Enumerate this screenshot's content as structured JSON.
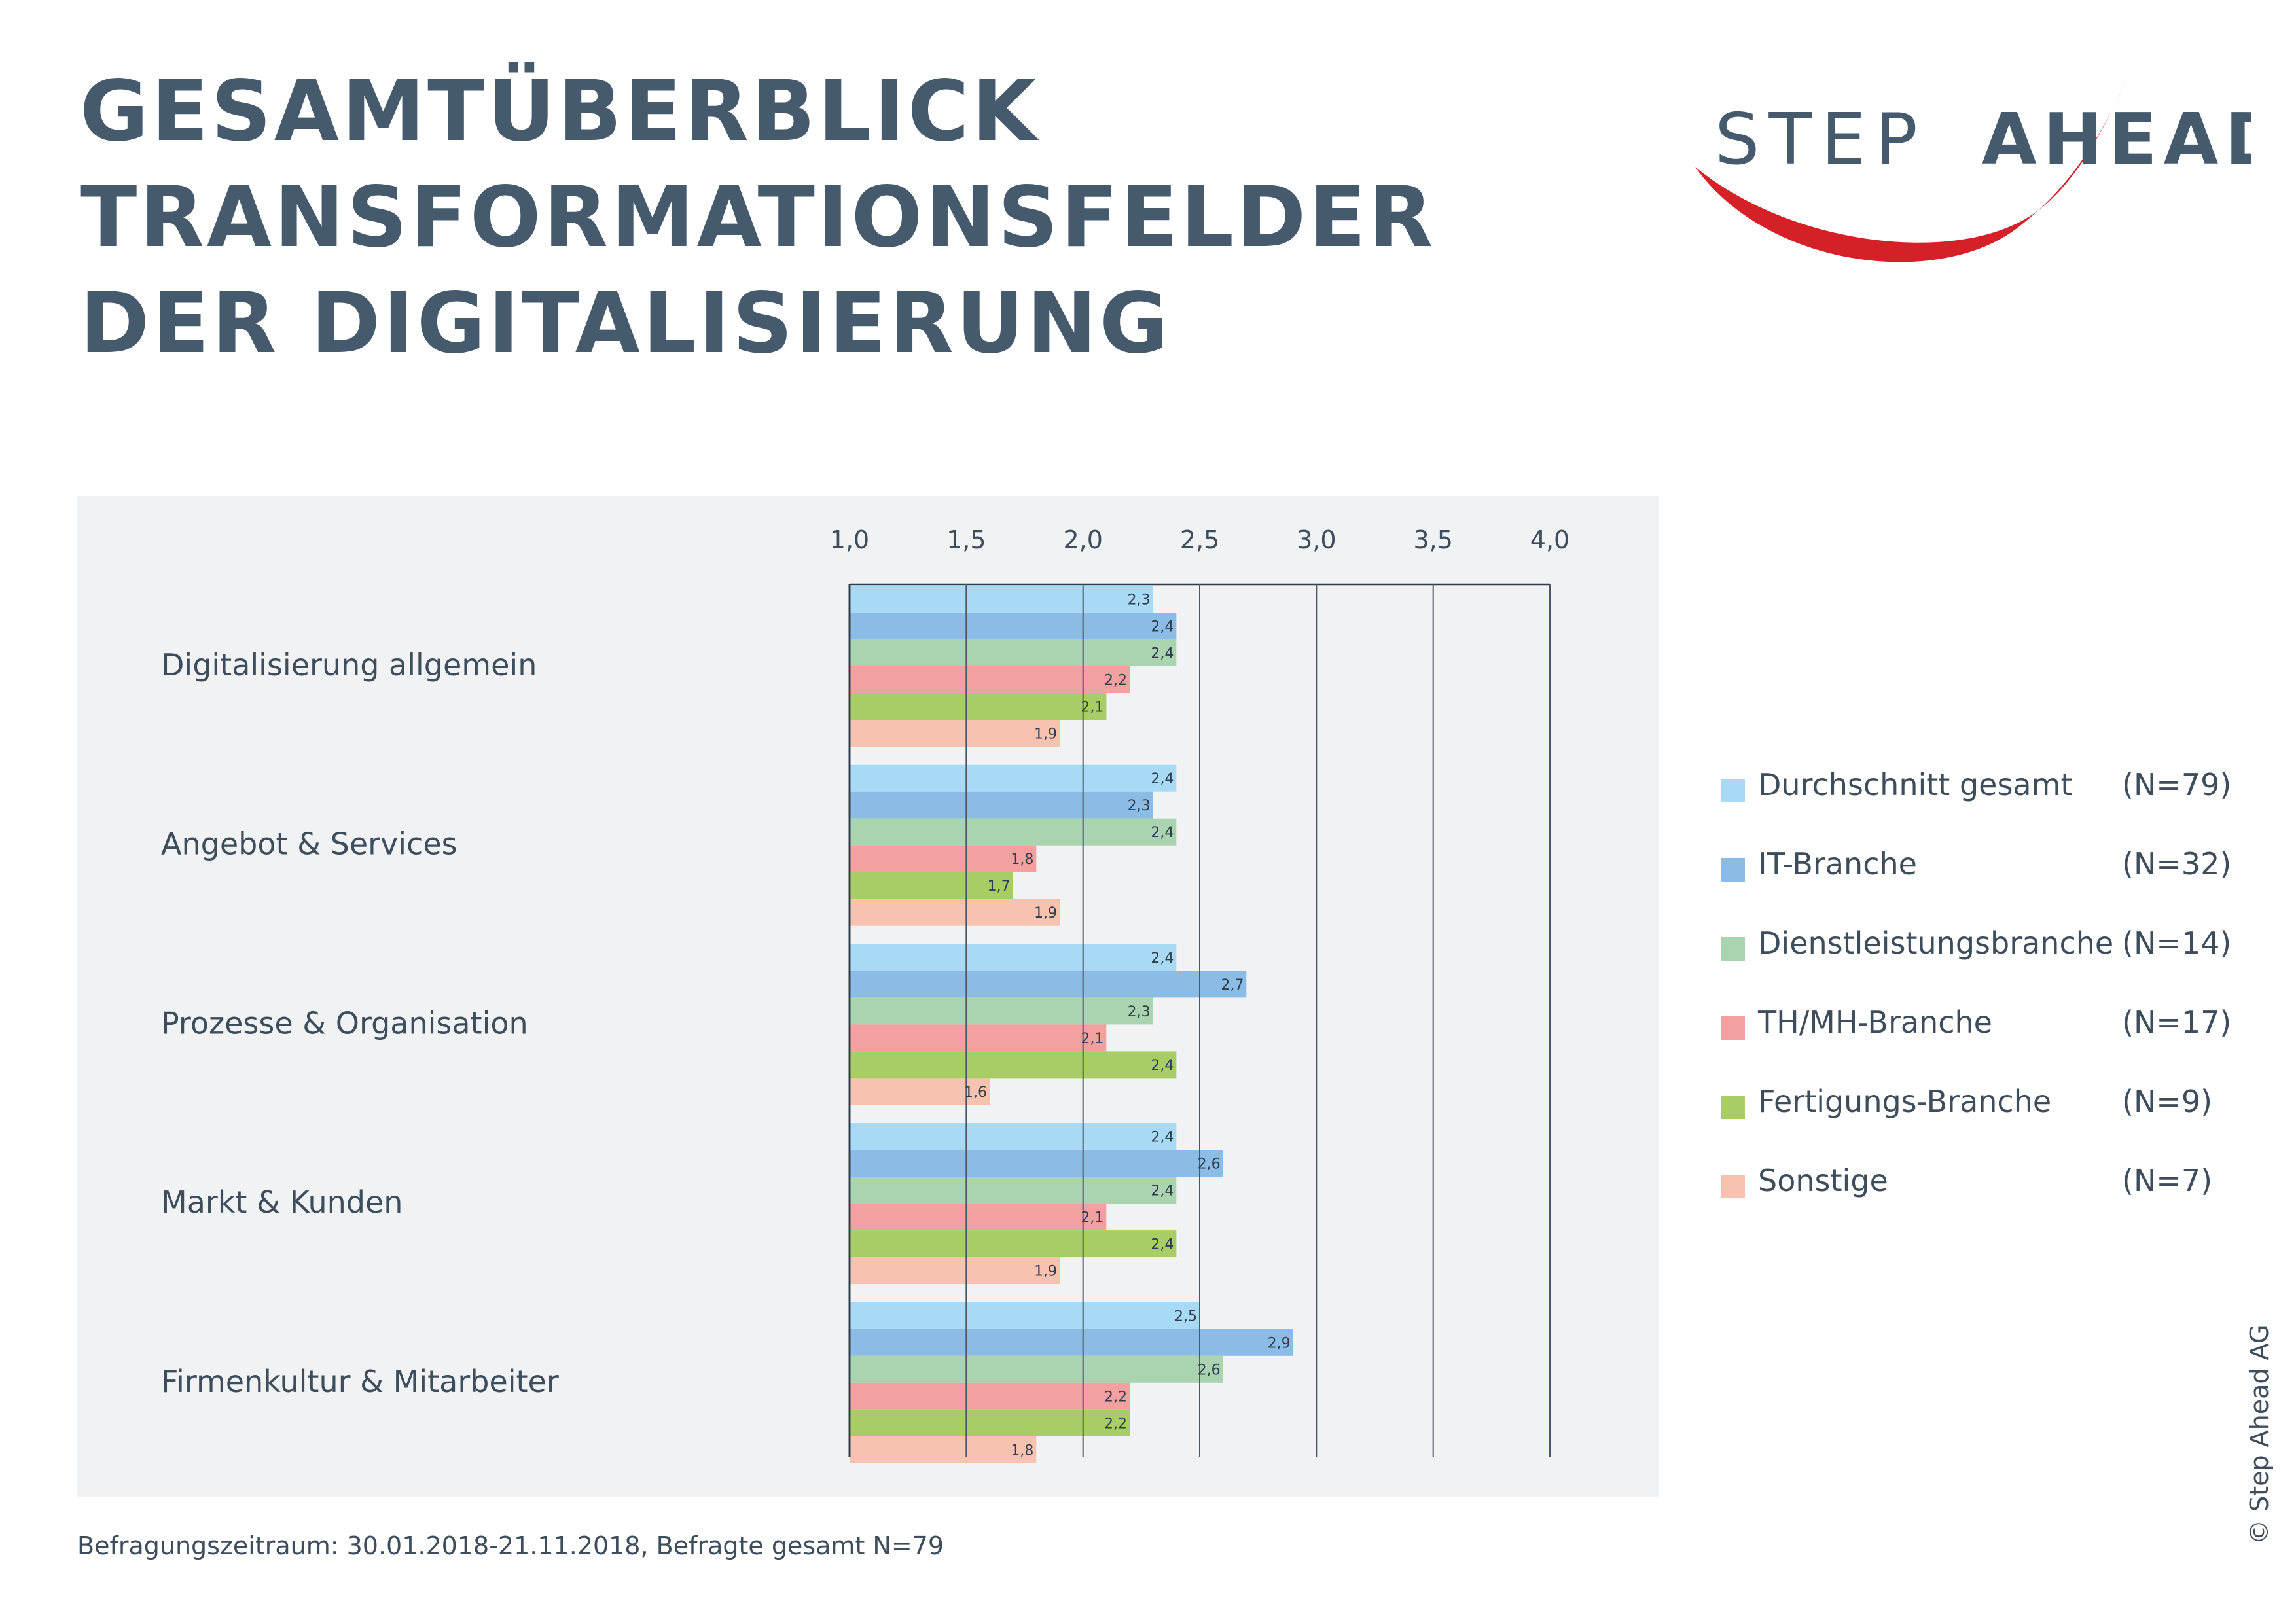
{
  "title_lines": [
    "GESAMTÜBERBLICK",
    "TRANSFORMATIONSFELDER",
    "DER DIGITALISIERUNG"
  ],
  "logo": {
    "word_left": "STEP",
    "word_right": "AHEAD",
    "text_color": "#455a6d",
    "swoosh_color": "#d42027"
  },
  "chart_data": {
    "type": "bar",
    "orientation": "horizontal",
    "title": "",
    "xlabel": "",
    "ylabel": "",
    "xlim": [
      1.0,
      4.0
    ],
    "x_ticks": [
      "1,0",
      "1,5",
      "2,0",
      "2,5",
      "3,0",
      "3,5",
      "4,0"
    ],
    "x_tick_values": [
      1.0,
      1.5,
      2.0,
      2.5,
      3.0,
      3.5,
      4.0
    ],
    "grid": true,
    "legend_position": "right",
    "categories": [
      "Digitalisierung allgemein",
      "Angebot & Services",
      "Prozesse & Organisation",
      "Markt & Kunden",
      "Firmenkultur & Mitarbeiter"
    ],
    "series": [
      {
        "name": "Durchschnitt gesamt",
        "n_label": "(N=79)",
        "color": "#a8daf5",
        "values": [
          2.3,
          2.4,
          2.4,
          2.4,
          2.5
        ],
        "labels": [
          "2,3",
          "2,4",
          "2,4",
          "2,4",
          "2,5"
        ]
      },
      {
        "name": "IT-Branche",
        "n_label": "(N=32)",
        "color": "#8bbce6",
        "values": [
          2.4,
          2.3,
          2.7,
          2.6,
          2.9
        ],
        "labels": [
          "2,4",
          "2,3",
          "2,7",
          "2,6",
          "2,9"
        ]
      },
      {
        "name": "Dienstleistungsbranche",
        "n_label": "(N=14)",
        "color": "#a9d4af",
        "values": [
          2.4,
          2.4,
          2.3,
          2.4,
          2.6
        ],
        "labels": [
          "2,4",
          "2,4",
          "2,3",
          "2,4",
          "2,6"
        ]
      },
      {
        "name": "TH/MH-Branche",
        "n_label": "(N=17)",
        "color": "#f2a0a0",
        "values": [
          2.2,
          1.8,
          2.1,
          2.1,
          2.2
        ],
        "labels": [
          "2,2",
          "1,8",
          "2,1",
          "2,1",
          "2,2"
        ]
      },
      {
        "name": "Fertigungs-Branche",
        "n_label": "(N=9)",
        "color": "#a8cd67",
        "values": [
          2.1,
          1.7,
          2.4,
          2.4,
          2.2
        ],
        "labels": [
          "2,1",
          "1,7",
          "2,4",
          "2,4",
          "2,2"
        ]
      },
      {
        "name": "Sonstige",
        "n_label": "(N=7)",
        "color": "#f7c3b0",
        "values": [
          1.9,
          1.9,
          1.6,
          1.9,
          1.8
        ],
        "labels": [
          "1,9",
          "1,9",
          "1,6",
          "1,9",
          "1,8"
        ]
      }
    ]
  },
  "footnote": "Befragungszeitraum: 30.01.2018-21.11.2018, Befragte gesamt N=79",
  "copyright": "© Step Ahead AG"
}
